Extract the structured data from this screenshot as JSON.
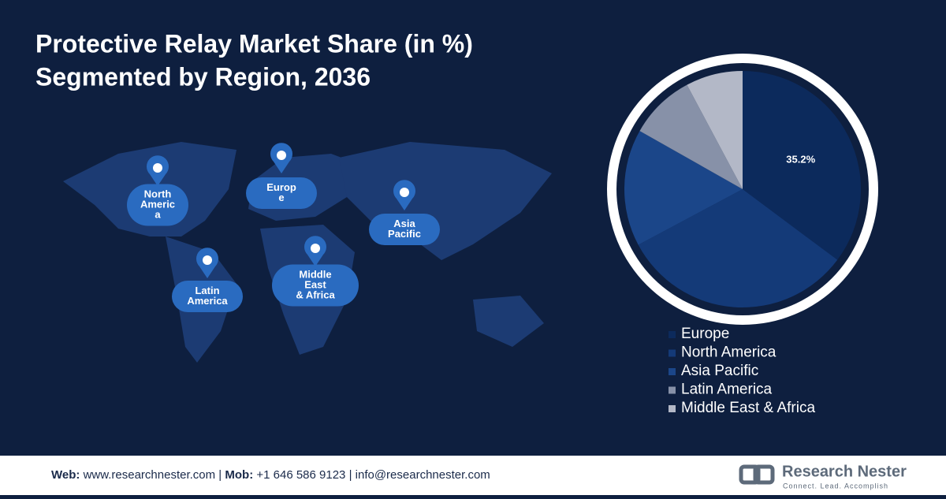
{
  "chart_data": {
    "type": "pie",
    "title": [
      "Protective Relay Market Share (in %)",
      "Segmented by Region, 2036"
    ],
    "categories": [
      "Europe",
      "North America",
      "Asia Pacific",
      "Latin America",
      "Middle East & Africa"
    ],
    "values": [
      35.2,
      32,
      16,
      9,
      7.8
    ],
    "value_labels": [
      "35.2%",
      null,
      null,
      null,
      null
    ],
    "colors": [
      "#0c2a5c",
      "#143a78",
      "#1b4689",
      "#8791a8",
      "#b3b8c7"
    ]
  },
  "map_labels": [
    [
      "North",
      "Americ",
      "a"
    ],
    [
      "Europ",
      "e"
    ],
    [
      "Asia",
      "Pacific"
    ],
    [
      "Latin",
      "America"
    ],
    [
      "Middle",
      "East",
      "& Africa"
    ]
  ],
  "footer": {
    "web_label": "Web:",
    "web": "www.researchnester.com",
    "sep1": "|",
    "mob_label": "Mob:",
    "mob": "+1 646 586 9123",
    "sep2": "|",
    "email": "info@researchnester.com"
  },
  "logo": {
    "name": "Research Nester",
    "tagline": "Connect. Lead. Accomplish"
  }
}
